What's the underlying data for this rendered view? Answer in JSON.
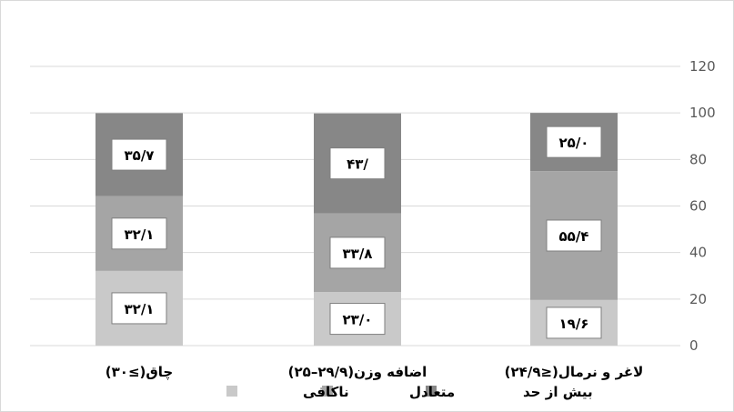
{
  "chart_data": {
    "type": "bar",
    "stacked": true,
    "categories": [
      "لاغر و نرمال(≤۲۴/۹)",
      "اضافه وزن(۲۹/۹–۲۵)",
      "چاق(≥۳۰)"
    ],
    "series": [
      {
        "name": "ناکافی",
        "values": [
          19.6,
          23.0,
          32.1
        ],
        "labels": [
          "۱۹/۶",
          "۲۳/۰",
          "۳۲/۱"
        ],
        "color": "#c9c9c9"
      },
      {
        "name": "متعادل",
        "values": [
          55.4,
          33.8,
          32.1
        ],
        "labels": [
          "۵۵/۴",
          "۳۳/۸",
          "۳۲/۱"
        ],
        "color": "#a5a5a5"
      },
      {
        "name": "بیش از حد",
        "values": [
          25.0,
          43.0,
          35.7
        ],
        "labels": [
          "۲۵/۰",
          "۴۳/",
          "۳۵/۷"
        ],
        "color": "#878787"
      }
    ],
    "y_ticks": [
      "0",
      "20",
      "40",
      "60",
      "80",
      "100",
      "120"
    ],
    "ylim": [
      0,
      120
    ],
    "y_axis_side": "right",
    "x_order": "right-to-left",
    "grid": true,
    "legend_position": "bottom",
    "title": "",
    "xlabel": "",
    "ylabel": ""
  }
}
